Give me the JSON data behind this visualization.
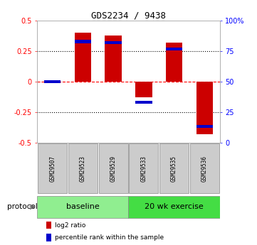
{
  "title": "GDS2234 / 9438",
  "samples": [
    "GSM29507",
    "GSM29523",
    "GSM29529",
    "GSM29533",
    "GSM29535",
    "GSM29536"
  ],
  "log2_ratio": [
    0.0,
    0.4,
    0.38,
    -0.13,
    0.32,
    -0.43
  ],
  "percentile_rank": [
    50,
    83,
    82,
    33,
    77,
    13
  ],
  "bar_color_red": "#cc0000",
  "bar_color_blue": "#0000cc",
  "ylim_left": [
    -0.5,
    0.5
  ],
  "ylim_right": [
    0,
    100
  ],
  "yticks_left": [
    -0.5,
    -0.25,
    0.0,
    0.25,
    0.5
  ],
  "yticks_right": [
    0,
    25,
    50,
    75,
    100
  ],
  "ytick_labels_right": [
    "0",
    "25",
    "50",
    "75",
    "100%"
  ],
  "zero_line_color": "#ff0000",
  "dotted_line_color": "#000000",
  "groups": [
    {
      "label": "baseline",
      "samples": [
        0,
        1,
        2
      ],
      "color": "#90ee90"
    },
    {
      "label": "20 wk exercise",
      "samples": [
        3,
        4,
        5
      ],
      "color": "#44dd44"
    }
  ],
  "protocol_label": "protocol",
  "legend_red": "log2 ratio",
  "legend_blue": "percentile rank within the sample",
  "bar_width": 0.55,
  "background_color": "#ffffff",
  "plot_bg_color": "#ffffff",
  "spine_color": "#aaaaaa"
}
